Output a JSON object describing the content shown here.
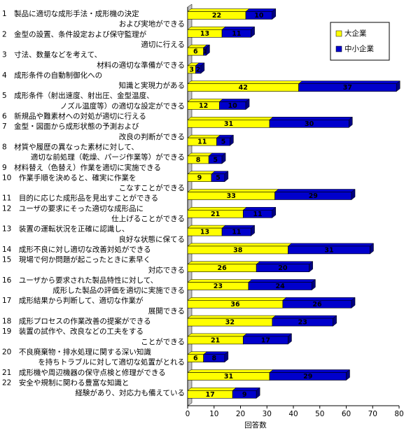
{
  "chart_data": {
    "type": "bar",
    "orientation": "horizontal",
    "stacked": true,
    "x_label": "回答数",
    "categories": [
      [
        "1　製品に適切な成形手法・成形機の決定",
        "および実地ができる"
      ],
      [
        "2　金型の設置、条件設定および保守監理が",
        "適切に行える"
      ],
      [
        "3　寸法、数量などを考えて、",
        "材料の適切な準備ができる"
      ],
      [
        "4　成形条件の自動制御化への",
        "知識と実現力がある"
      ],
      [
        "5　成形条件（射出速度、射出圧、金型温度、",
        "ノズル温度等）の適切な設定ができる"
      ],
      [
        "6　新規品や難素材への対処が適切に行える"
      ],
      [
        "7　金型・図面から成形状態の予測および",
        "改良の判断ができる"
      ],
      [
        "8　材質や履歴の異なった素材に対して、",
        "適切な前処理（乾燥、パージ作業等）ができる"
      ],
      [
        "9　材料替え（色替え）作業を適切に実施できる"
      ],
      [
        "10　作業手順を決めると、確実に作業を",
        "こなすことができる"
      ],
      [
        "11　目的に応じた成形品を見出すことができる"
      ],
      [
        "12　ユーザの要求にそった適切な成形品に",
        "仕上げることができる"
      ],
      [
        "13　装置の運転状況を正確に認識し、",
        "良好な状態に保てる"
      ],
      [
        "14　成形不良に対し適切な改善対処ができる"
      ],
      [
        "15　現場で何か問題が起こったときに素早く",
        "対応できる"
      ],
      [
        "16　ユーザから要求された製品特性に対して、",
        "成形した製品の評価を適切に実施できる"
      ],
      [
        "17　成形結果から判断して、適切な作業が",
        "展開できる"
      ],
      [
        "18　成形プロセスの作業改善の提案ができる"
      ],
      [
        "19　装置の試作や、改良などの工夫をする",
        "ことができる"
      ],
      [
        "20　不良廃棄物・排水処理に関する深い知識",
        "を持ちトラブルに対して適切な処置がとれる"
      ],
      [
        "21　成形機や周辺機器の保守点検と修理ができる"
      ],
      [
        "22　安全や規制に関わる豊富な知識と",
        "経験があり、対応力も備えている"
      ]
    ],
    "series": [
      {
        "name": "大企業",
        "color": "#ffff00",
        "values": [
          22,
          13,
          6,
          3,
          42,
          12,
          31,
          11,
          8,
          9,
          33,
          21,
          13,
          38,
          26,
          23,
          36,
          32,
          21,
          6,
          31,
          17
        ]
      },
      {
        "name": "中小企業",
        "color": "#0000cc",
        "values": [
          10,
          11,
          1,
          2,
          37,
          10,
          30,
          5,
          5,
          5,
          29,
          11,
          11,
          31,
          20,
          24,
          26,
          23,
          17,
          8,
          29,
          9
        ]
      }
    ],
    "xlim": [
      0,
      80
    ],
    "xticks": [
      0,
      10,
      20,
      30,
      40,
      50,
      60,
      70,
      80
    ]
  }
}
